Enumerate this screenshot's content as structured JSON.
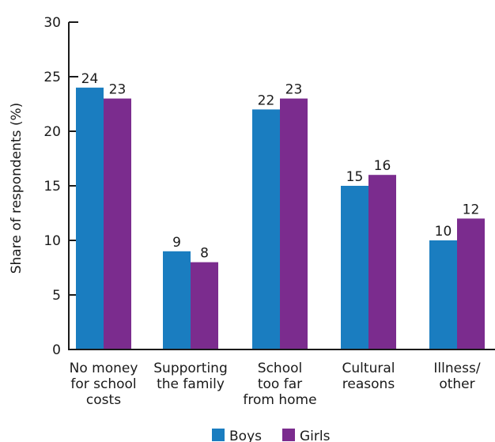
{
  "chart_data": {
    "type": "bar",
    "title": "",
    "xlabel": "",
    "ylabel": "Share of respondents (%)",
    "ylim": [
      0,
      30
    ],
    "yticks": [
      0,
      5,
      10,
      15,
      20,
      25,
      30
    ],
    "grid": false,
    "legend_position": "bottom",
    "categories": [
      [
        "No money",
        "for school",
        "costs"
      ],
      [
        "Supporting",
        "the family"
      ],
      [
        "School",
        "too far",
        "from home"
      ],
      [
        "Cultural",
        "reasons"
      ],
      [
        "Illness/",
        "other"
      ]
    ],
    "series": [
      {
        "name": "Boys",
        "color": "#1a7dc0",
        "values": [
          24,
          9,
          22,
          15,
          10
        ]
      },
      {
        "name": "Girls",
        "color": "#7b2c8e",
        "values": [
          23,
          8,
          23,
          16,
          12
        ]
      }
    ]
  }
}
